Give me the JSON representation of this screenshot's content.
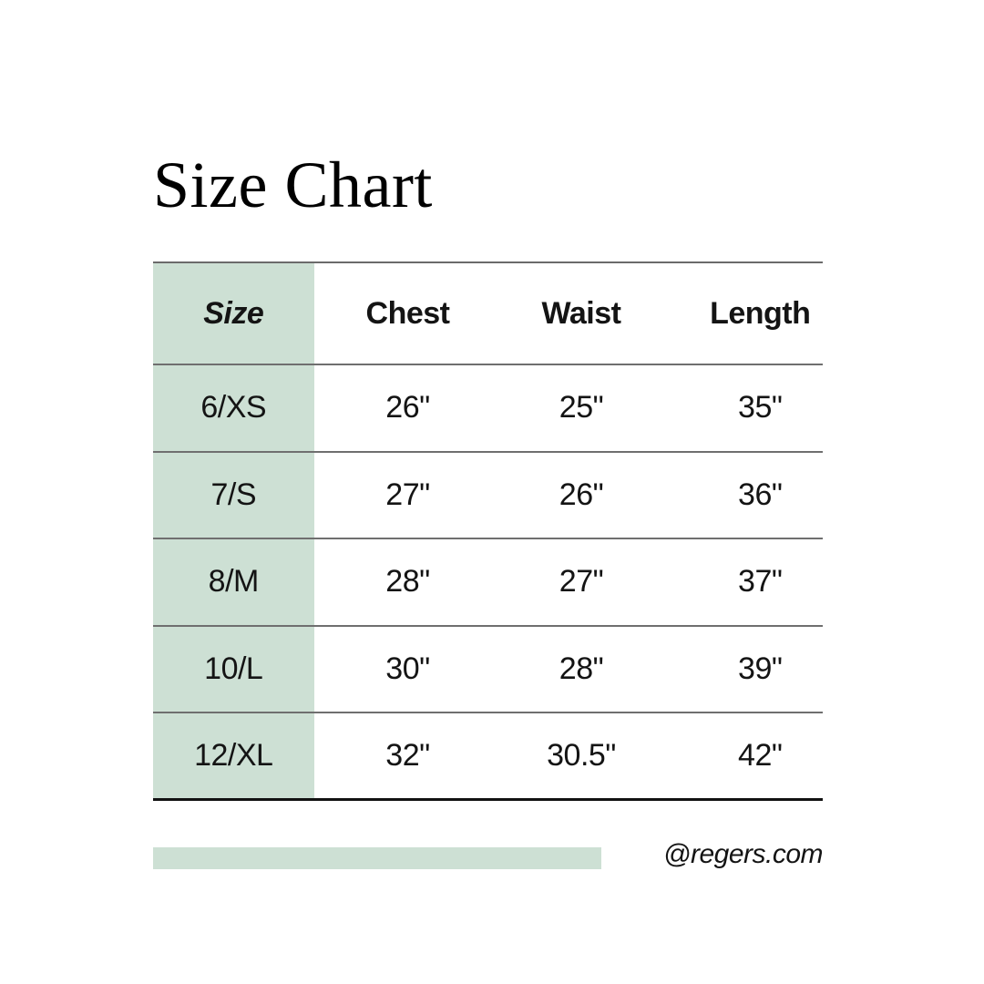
{
  "title": "Size Chart",
  "chart_data": {
    "type": "table",
    "title": "Size Chart",
    "columns": [
      "Size",
      "Chest",
      "Waist",
      "Length"
    ],
    "rows": [
      [
        "6/XS",
        "26\"",
        "25\"",
        "35\""
      ],
      [
        "7/S",
        "27\"",
        "26\"",
        "36\""
      ],
      [
        "8/M",
        "28\"",
        "27\"",
        "37\""
      ],
      [
        "10/L",
        "30\"",
        "28\"",
        "39\""
      ],
      [
        "12/XL",
        "32\"",
        "30.5\"",
        "42\""
      ]
    ],
    "layout_hints": {
      "first_column_highlighted": true,
      "header_style": "bold, size-column italic",
      "grid": "horizontal rules only"
    }
  },
  "footer": {
    "handle": "@regers.com"
  },
  "colors": {
    "accent_green": "#cde0d4",
    "rule_gray": "#6f6f6f",
    "bottom_rule_black": "#121212",
    "text": "#141414",
    "background": "#ffffff"
  }
}
